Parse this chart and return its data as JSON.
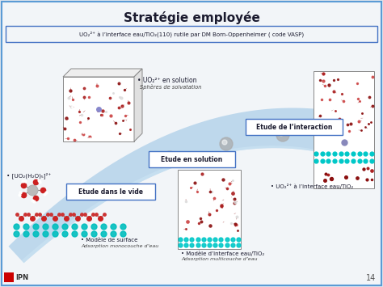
{
  "title": "Stratégie employée",
  "subtitle_box": "UO₂²⁺ à l’interface eau/TiO₂(110) rutile par DM Born-Oppenheimer ( code VASP)",
  "bg_color": "#dde4ec",
  "box_color": "#5b9bd5",
  "inner_bg": "#f2f5f8",
  "labels": {
    "etude_vide": "Etude dans le vide",
    "etude_solution": "Etude en solution",
    "etude_interaction": "Etude de l’interaction",
    "uo2_solution_line1": "• UO₂²⁺ en solution",
    "uo2_solution_line2": "Sphères de solvatation",
    "uo2_interface_line1": "• UO₂²⁺ à l’interface eau/TiO₂",
    "uo2_hydrate": "• [UO₂(H₂O)₅]²⁺",
    "modele_surface_line1": "• Modèle de surface",
    "modele_surface_line2": "Adsorption monocouche d’eau",
    "modele_interface_line1": "• Modèle d’interface eau/TiO₂",
    "modele_interface_line2": "Adsorption multicouche d’eau"
  },
  "page_number": "14"
}
